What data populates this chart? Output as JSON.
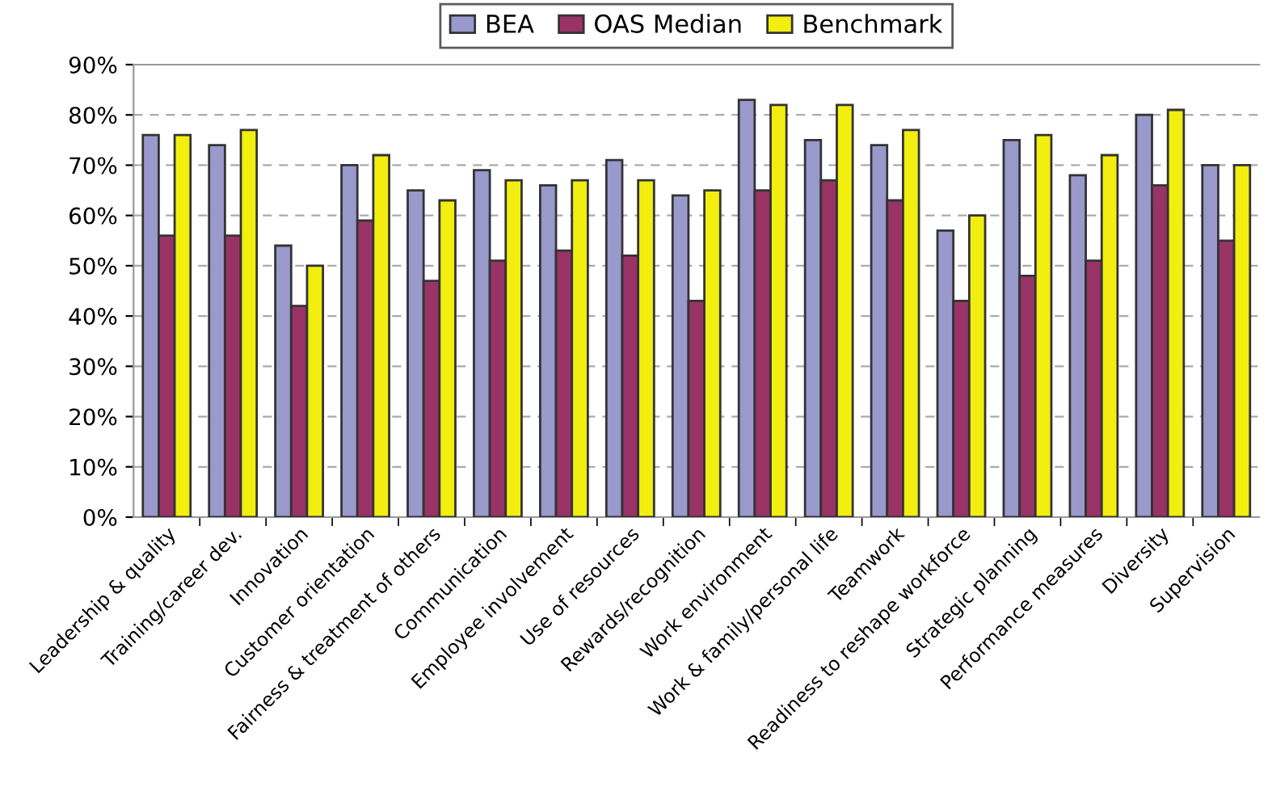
{
  "chart_data": {
    "type": "bar",
    "categories": [
      "Leadership & quality",
      "Training/career dev.",
      "Innovation",
      "Customer orientation",
      "Fairness & treatment of others",
      "Communication",
      "Employee involvement",
      "Use of resources",
      "Rewards/recognition",
      "Work environment",
      "Work & family/personal life",
      "Teamwork",
      "Readiness to reshape workforce",
      "Strategic planning",
      "Performance measures",
      "Diversity",
      "Supervision"
    ],
    "series": [
      {
        "name": "BEA",
        "color": "#9999cc",
        "values": [
          76,
          74,
          54,
          70,
          65,
          69,
          66,
          71,
          64,
          83,
          75,
          74,
          57,
          75,
          68,
          80,
          70
        ]
      },
      {
        "name": "OAS Median",
        "color": "#993366",
        "values": [
          56,
          56,
          42,
          59,
          47,
          51,
          53,
          52,
          43,
          65,
          67,
          63,
          43,
          48,
          51,
          66,
          55
        ]
      },
      {
        "name": "Benchmark",
        "color": "#f2ee10",
        "values": [
          76,
          77,
          50,
          72,
          63,
          67,
          67,
          67,
          65,
          82,
          82,
          77,
          60,
          76,
          72,
          81,
          70
        ]
      }
    ],
    "ylim": [
      0,
      90
    ],
    "yticks": [
      {
        "value": 0,
        "label": "0%"
      },
      {
        "value": 10,
        "label": "10%"
      },
      {
        "value": 20,
        "label": "20%"
      },
      {
        "value": 30,
        "label": "30%"
      },
      {
        "value": 40,
        "label": "40%"
      },
      {
        "value": 50,
        "label": "50%"
      },
      {
        "value": 60,
        "label": "60%"
      },
      {
        "value": 70,
        "label": "70%"
      },
      {
        "value": 80,
        "label": "80%"
      },
      {
        "value": 90,
        "label": "90%"
      }
    ],
    "grid": "y",
    "legend": "top"
  }
}
